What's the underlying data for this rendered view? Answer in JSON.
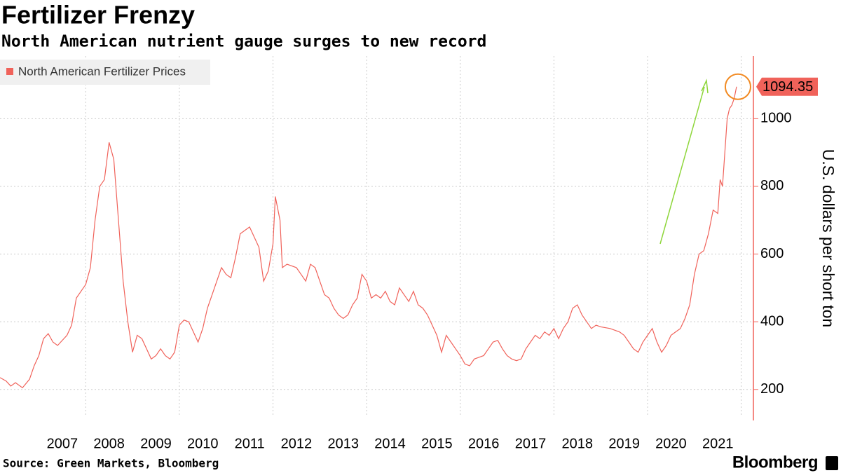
{
  "chart_data": {
    "type": "line",
    "title": "Fertilizer Frenzy",
    "subtitle": "North American nutrient gauge surges to new record",
    "y_label": "U.S. dollars per short ton",
    "source": "Source: Green Markets, Bloomberg",
    "logo": "Bloomberg",
    "legend": "top-left",
    "grid": true,
    "xlim": [
      2006.17,
      2022.26
    ],
    "ylim": [
      125,
      1185
    ],
    "yticks": [
      200,
      400,
      600,
      800,
      1000
    ],
    "xgrid": [
      2008,
      2010,
      2012,
      2014,
      2016,
      2018,
      2020,
      2022
    ],
    "xticks": [
      {
        "value": 2007.5,
        "label": "2007"
      },
      {
        "value": 2008.5,
        "label": "2008"
      },
      {
        "value": 2009.5,
        "label": "2009"
      },
      {
        "value": 2010.5,
        "label": "2010"
      },
      {
        "value": 2011.5,
        "label": "2011"
      },
      {
        "value": 2012.5,
        "label": "2012"
      },
      {
        "value": 2013.5,
        "label": "2013"
      },
      {
        "value": 2014.5,
        "label": "2014"
      },
      {
        "value": 2015.5,
        "label": "2015"
      },
      {
        "value": 2016.5,
        "label": "2016"
      },
      {
        "value": 2017.5,
        "label": "2017"
      },
      {
        "value": 2018.5,
        "label": "2018"
      },
      {
        "value": 2019.5,
        "label": "2019"
      },
      {
        "value": 2020.5,
        "label": "2020"
      },
      {
        "value": 2021.5,
        "label": "2021"
      }
    ],
    "x": [
      2006.17,
      2006.3,
      2006.4,
      2006.5,
      2006.65,
      2006.8,
      2006.9,
      2007.0,
      2007.1,
      2007.2,
      2007.3,
      2007.4,
      2007.5,
      2007.6,
      2007.7,
      2007.8,
      2007.9,
      2008.0,
      2008.1,
      2008.2,
      2008.3,
      2008.4,
      2008.5,
      2008.6,
      2008.7,
      2008.8,
      2008.9,
      2009.0,
      2009.1,
      2009.2,
      2009.3,
      2009.4,
      2009.5,
      2009.6,
      2009.7,
      2009.8,
      2009.9,
      2010.0,
      2010.1,
      2010.2,
      2010.3,
      2010.4,
      2010.5,
      2010.6,
      2010.7,
      2010.8,
      2010.9,
      2011.0,
      2011.1,
      2011.2,
      2011.3,
      2011.4,
      2011.5,
      2011.6,
      2011.7,
      2011.8,
      2011.9,
      2012.0,
      2012.05,
      2012.15,
      2012.2,
      2012.3,
      2012.5,
      2012.6,
      2012.7,
      2012.8,
      2012.9,
      2013.0,
      2013.1,
      2013.2,
      2013.3,
      2013.4,
      2013.5,
      2013.6,
      2013.7,
      2013.8,
      2013.9,
      2014.0,
      2014.1,
      2014.2,
      2014.3,
      2014.4,
      2014.5,
      2014.6,
      2014.7,
      2014.8,
      2014.9,
      2015.0,
      2015.1,
      2015.2,
      2015.3,
      2015.4,
      2015.5,
      2015.6,
      2015.7,
      2015.8,
      2015.9,
      2016.0,
      2016.1,
      2016.2,
      2016.3,
      2016.5,
      2016.6,
      2016.7,
      2016.8,
      2016.9,
      2017.0,
      2017.1,
      2017.2,
      2017.3,
      2017.4,
      2017.5,
      2017.6,
      2017.7,
      2017.8,
      2017.9,
      2018.0,
      2018.1,
      2018.2,
      2018.3,
      2018.4,
      2018.5,
      2018.6,
      2018.7,
      2018.8,
      2018.9,
      2019.0,
      2019.2,
      2019.4,
      2019.5,
      2019.6,
      2019.7,
      2019.8,
      2019.9,
      2020.0,
      2020.1,
      2020.2,
      2020.3,
      2020.4,
      2020.5,
      2020.6,
      2020.7,
      2020.8,
      2020.9,
      2021.0,
      2021.1,
      2021.2,
      2021.3,
      2021.4,
      2021.5,
      2021.55,
      2021.6,
      2021.65,
      2021.7,
      2021.75,
      2021.8,
      2021.85,
      2021.9
    ],
    "series": [
      {
        "name": "North American Fertilizer Prices",
        "color": "#f0625a",
        "values": [
          235,
          225,
          210,
          220,
          205,
          230,
          270,
          300,
          350,
          365,
          340,
          330,
          345,
          360,
          390,
          470,
          490,
          510,
          560,
          700,
          800,
          820,
          930,
          880,
          700,
          520,
          400,
          310,
          360,
          350,
          320,
          290,
          300,
          320,
          300,
          290,
          310,
          390,
          405,
          400,
          370,
          340,
          380,
          440,
          480,
          520,
          560,
          540,
          530,
          590,
          660,
          670,
          680,
          650,
          620,
          520,
          550,
          630,
          770,
          700,
          560,
          570,
          560,
          540,
          520,
          570,
          560,
          520,
          480,
          470,
          440,
          420,
          410,
          420,
          450,
          470,
          540,
          520,
          470,
          480,
          470,
          490,
          460,
          450,
          500,
          480,
          460,
          490,
          450,
          440,
          420,
          390,
          360,
          310,
          360,
          340,
          320,
          300,
          275,
          270,
          290,
          300,
          320,
          340,
          345,
          320,
          300,
          290,
          285,
          290,
          320,
          340,
          360,
          350,
          370,
          360,
          380,
          350,
          380,
          400,
          440,
          450,
          420,
          400,
          380,
          390,
          385,
          380,
          370,
          360,
          340,
          320,
          310,
          340,
          360,
          380,
          340,
          310,
          330,
          360,
          370,
          380,
          410,
          450,
          540,
          600,
          610,
          660,
          730,
          720,
          820,
          800,
          900,
          1000,
          1030,
          1040,
          1060,
          1094.35
        ]
      }
    ]
  }
}
